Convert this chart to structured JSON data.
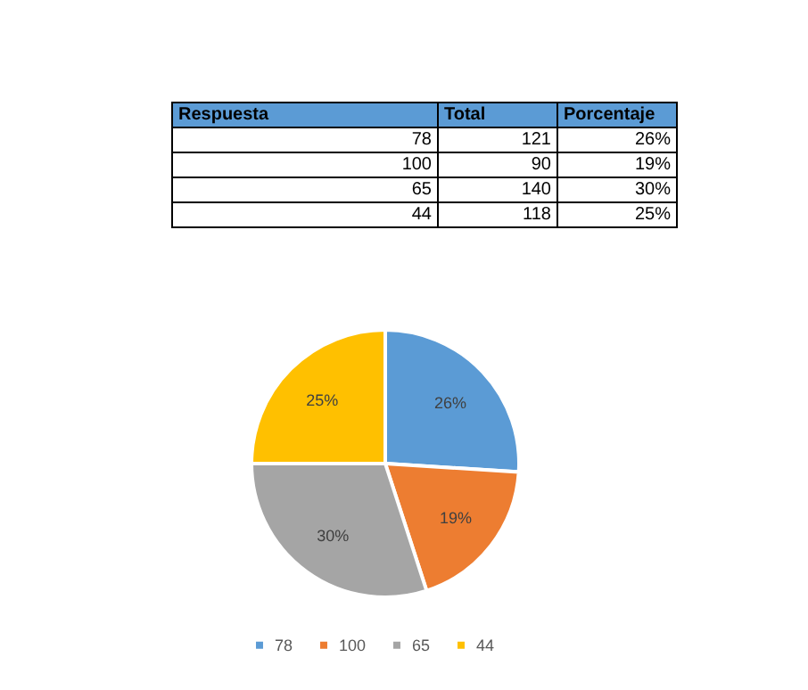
{
  "chart_data": [
    {
      "type": "other",
      "annotations": [
        "Respuesta",
        "Total",
        "Porcentaje",
        "78",
        "121",
        "26%",
        "100",
        "90",
        "19%",
        "65",
        "140",
        "30%",
        "44",
        "118",
        "25%"
      ]
    },
    {
      "type": "pie",
      "categories": [
        "78",
        "100",
        "65",
        "44"
      ],
      "values": [
        26,
        19,
        30,
        25
      ],
      "value_labels": [
        "26%",
        "19%",
        "30%",
        "25%"
      ],
      "colors": [
        "#5b9bd5",
        "#ed7d31",
        "#a5a5a5",
        "#ffc000"
      ],
      "legend": "bottom"
    }
  ]
}
